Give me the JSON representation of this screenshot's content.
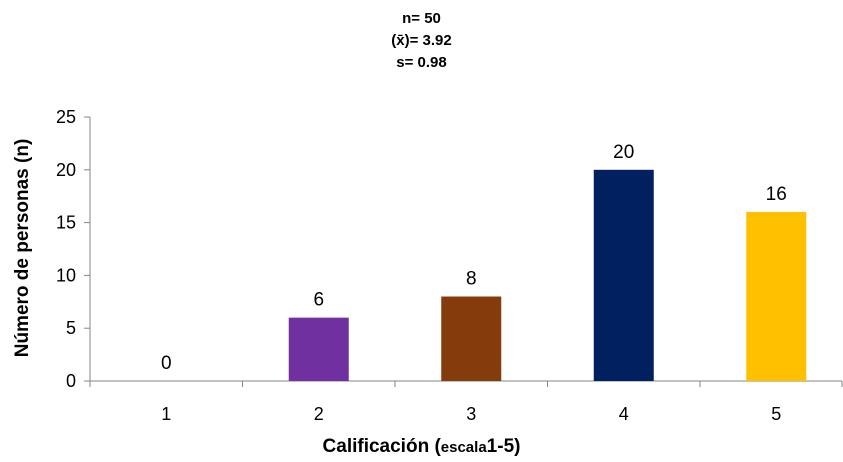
{
  "stats": {
    "n": "n= 50",
    "mean": "(x̄)= 3.92",
    "sd": "s= 0.98"
  },
  "chart_data": {
    "type": "bar",
    "categories": [
      "1",
      "2",
      "3",
      "4",
      "5"
    ],
    "values": [
      0,
      6,
      8,
      20,
      16
    ],
    "colors": [
      "#7030a0",
      "#7030a0",
      "#843c0c",
      "#002060",
      "#ffc000"
    ],
    "ylim": [
      0,
      25
    ],
    "yticks": [
      0,
      5,
      10,
      15,
      20,
      25
    ],
    "ylabel": "Número de personas (n)",
    "xlabel_main": "Calificación (",
    "xlabel_small": "escala",
    "xlabel_end": "1-5)",
    "grid": false,
    "legend": "none"
  }
}
